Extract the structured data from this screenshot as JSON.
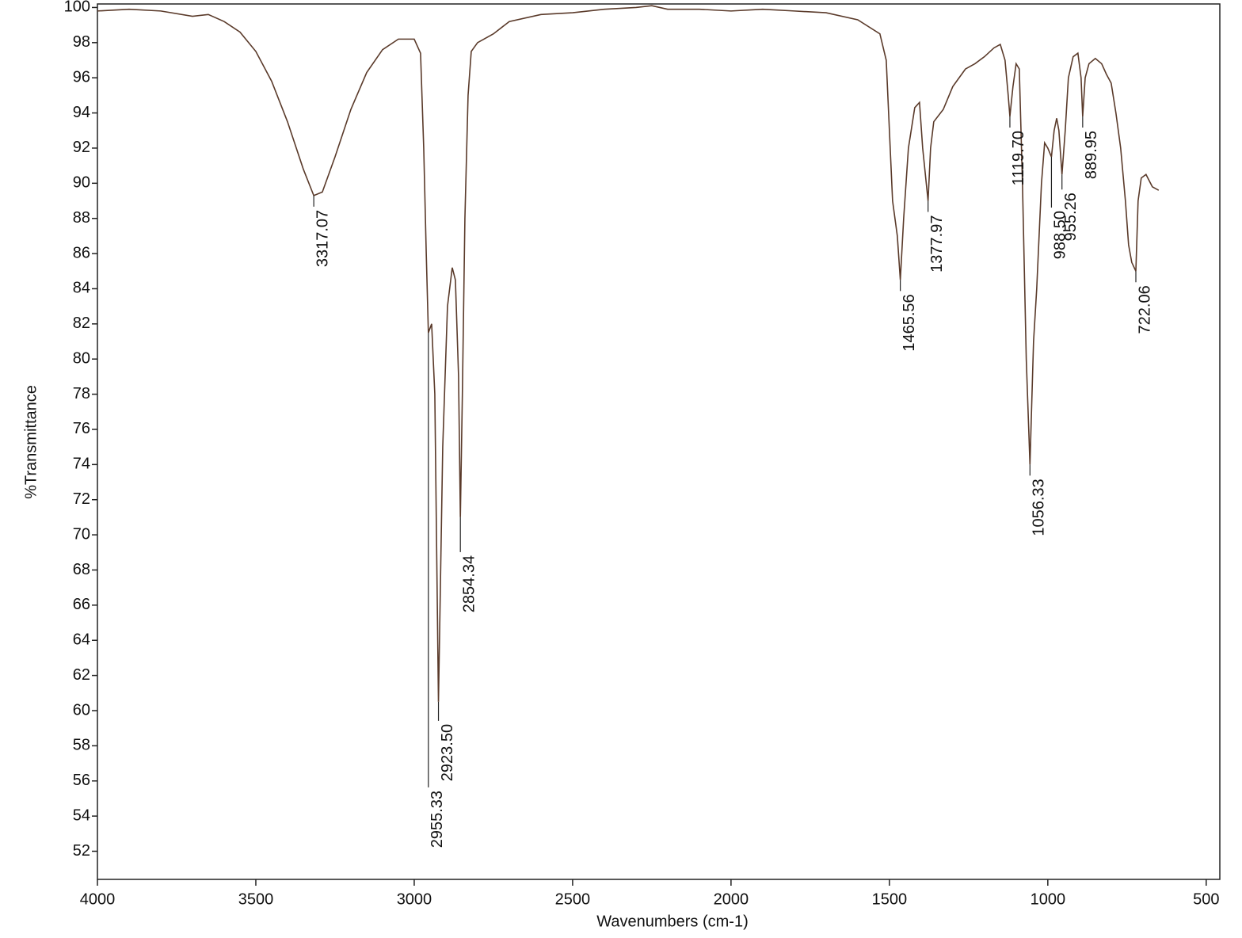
{
  "chart_data": {
    "type": "line",
    "x_label": "Wavenumbers (cm-1)",
    "y_label": "%Transmittance",
    "xlim": [
      4000,
      457
    ],
    "ylim": [
      50.4,
      100.2
    ],
    "xticks": [
      4000,
      3500,
      3000,
      2500,
      2000,
      1500,
      1000,
      500
    ],
    "yticks": [
      100,
      98,
      96,
      94,
      92,
      90,
      88,
      86,
      84,
      82,
      80,
      78,
      76,
      74,
      72,
      70,
      68,
      66,
      64,
      62,
      60,
      58,
      56,
      54,
      52
    ],
    "grid": false,
    "series": [
      {
        "color": "#5a3a2a",
        "x": [
          4000,
          3900,
          3800,
          3700,
          3650,
          3600,
          3550,
          3500,
          3450,
          3400,
          3350,
          3317.07,
          3290,
          3250,
          3200,
          3150,
          3100,
          3050,
          3000,
          2980,
          2970,
          2962,
          2955.33,
          2945,
          2935,
          2923.5,
          2910,
          2895,
          2880,
          2870,
          2860,
          2854.34,
          2848,
          2840,
          2830,
          2820,
          2800,
          2750,
          2700,
          2600,
          2500,
          2400,
          2300,
          2250,
          2200,
          2100,
          2000,
          1900,
          1800,
          1700,
          1600,
          1530,
          1510,
          1500,
          1490,
          1475,
          1465.56,
          1455,
          1440,
          1420,
          1405,
          1395,
          1377.97,
          1370,
          1360,
          1330,
          1300,
          1260,
          1230,
          1200,
          1170,
          1150,
          1135,
          1125,
          1119.7,
          1110,
          1100,
          1090,
          1080,
          1068,
          1056.33,
          1045,
          1035,
          1020,
          1010,
          1000,
          988.5,
          980,
          972,
          965,
          955.26,
          945,
          935,
          920,
          905,
          895,
          889.95,
          882,
          870,
          850,
          830,
          815,
          800,
          785,
          770,
          755,
          745,
          735,
          722.06,
          715,
          705,
          690,
          670,
          650
        ],
        "values": [
          99.8,
          99.9,
          99.8,
          99.5,
          99.6,
          99.2,
          98.6,
          97.5,
          95.8,
          93.5,
          90.8,
          89.3,
          89.5,
          91.5,
          94.2,
          96.3,
          97.6,
          98.2,
          98.2,
          97.4,
          92,
          86,
          81.5,
          82,
          78,
          60.5,
          75,
          83,
          85.2,
          84.5,
          79,
          71,
          78,
          88,
          95,
          97.5,
          98,
          98.5,
          99.2,
          99.6,
          99.7,
          99.9,
          100,
          100.1,
          99.9,
          99.9,
          99.8,
          99.9,
          99.8,
          99.7,
          99.3,
          98.5,
          97,
          93,
          89,
          87,
          84.5,
          88,
          92,
          94.3,
          94.6,
          92,
          89,
          92,
          93.5,
          94.2,
          95.5,
          96.5,
          96.8,
          97.2,
          97.7,
          97.9,
          97,
          95,
          93.8,
          95.5,
          96.8,
          96.5,
          90,
          80,
          74,
          81,
          84,
          90,
          92.3,
          92,
          91.5,
          93,
          93.7,
          93,
          90.5,
          93,
          96,
          97.2,
          97.4,
          96,
          93.8,
          96,
          96.8,
          97.1,
          96.8,
          96.2,
          95.7,
          94,
          92,
          89,
          86.5,
          85.5,
          85,
          89,
          90.3,
          90.5,
          89.8,
          89.6
        ]
      }
    ],
    "peaks": {
      "x": [
        3317.07,
        2955.33,
        2923.5,
        2854.34,
        1465.56,
        1377.97,
        1119.7,
        1056.33,
        988.5,
        955.26,
        889.95,
        722.06
      ],
      "labels": [
        "3317.07",
        "2955.33",
        "2923.50",
        "2854.34",
        "1465.56",
        "1377.97",
        "1119.70",
        "1056.33",
        "988.50",
        "955.26",
        "889.95",
        "722.06"
      ],
      "y": [
        89.3,
        81.5,
        60.5,
        71,
        84.5,
        89,
        93.8,
        74,
        91.5,
        90.5,
        93.8,
        85
      ]
    }
  }
}
